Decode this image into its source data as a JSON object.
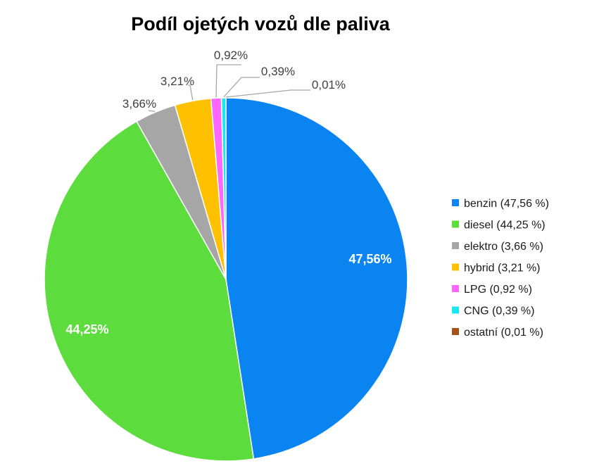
{
  "chart_data": {
    "type": "pie",
    "title": "Podíl ojetých vozů dle paliva",
    "categories": [
      "benzin",
      "diesel",
      "elektro",
      "hybrid",
      "LPG",
      "CNG",
      "ostatní"
    ],
    "values": [
      47.56,
      44.25,
      3.66,
      3.21,
      0.92,
      0.39,
      0.01
    ],
    "data_labels": [
      "47,56%",
      "44,25%",
      "3,66%",
      "3,21%",
      "0,92%",
      "0,39%",
      "0,01%"
    ],
    "legend_labels": [
      "benzin (47,56 %)",
      "diesel (44,25 %)",
      "elektro (3,66 %)",
      "hybrid (3,21 %)",
      "LPG (0,92 %)",
      "CNG (0,39 %)",
      "ostatní (0,01 %)"
    ],
    "colors": [
      "#0a84f0",
      "#5ddc3e",
      "#a6a6a6",
      "#ffc000",
      "#ff66ff",
      "#19e8ee",
      "#a5511a"
    ],
    "legend_position": "right",
    "start_angle_deg": 0,
    "direction": "clockwise"
  }
}
